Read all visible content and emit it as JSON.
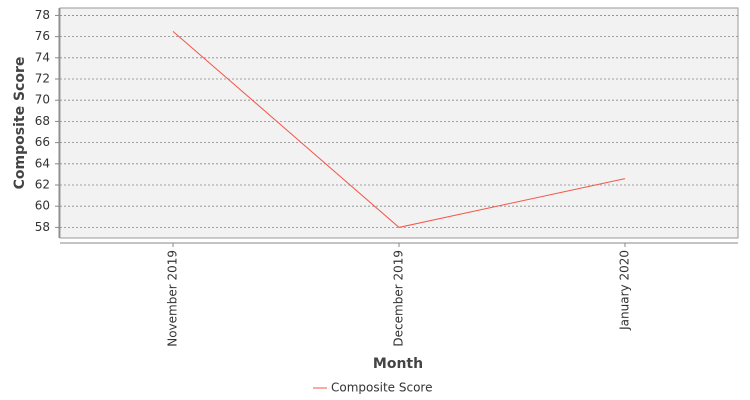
{
  "chart_data": {
    "type": "line",
    "x_label": "Month",
    "y_label": "Composite Score",
    "categories": [
      "November 2019",
      "December 2019",
      "January 2020"
    ],
    "series": [
      {
        "name": "Composite Score",
        "color": "#f2584a",
        "values": [
          76.5,
          58,
          62.6
        ]
      }
    ],
    "ylim": [
      57,
      78.7
    ],
    "yticks": [
      58,
      60,
      62,
      64,
      66,
      68,
      70,
      72,
      74,
      76,
      78
    ],
    "grid": true
  }
}
